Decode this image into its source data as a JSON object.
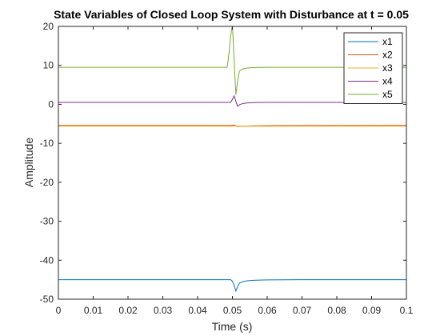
{
  "chart_data": {
    "type": "line",
    "title": "State Variables of Closed Loop System with Disturbance at t = 0.05",
    "xlabel": "Time (s)",
    "ylabel": "Amplitude",
    "xlim": [
      0,
      0.1
    ],
    "ylim": [
      -50,
      20
    ],
    "xticks": [
      "0",
      "0.01",
      "0.02",
      "0.03",
      "0.04",
      "0.05",
      "0.06",
      "0.07",
      "0.08",
      "0.09",
      "0.1"
    ],
    "xtick_values": [
      0,
      0.01,
      0.02,
      0.03,
      0.04,
      0.05,
      0.06,
      0.07,
      0.08,
      0.09,
      0.1
    ],
    "yticks": [
      "-50",
      "-40",
      "-30",
      "-20",
      "-10",
      "0",
      "10",
      "20"
    ],
    "ytick_values": [
      -50,
      -40,
      -30,
      -20,
      -10,
      0,
      10,
      20
    ],
    "grid": false,
    "legend_position": "top-right",
    "series": [
      {
        "name": "x1",
        "color": "#0072BD",
        "x": [
          0,
          0.0495,
          0.05,
          0.0505,
          0.051,
          0.0515,
          0.052,
          0.053,
          0.054,
          0.056,
          0.06,
          0.07,
          0.1
        ],
        "y": [
          -45,
          -45,
          -45.4,
          -46.5,
          -47.9,
          -46.8,
          -45.9,
          -45.5,
          -45.3,
          -45.15,
          -45.05,
          -45,
          -45
        ]
      },
      {
        "name": "x2",
        "color": "#D95319",
        "x": [
          0,
          0.0495,
          0.0505,
          0.0515,
          0.053,
          0.056,
          0.06,
          0.1
        ],
        "y": [
          -5.4,
          -5.4,
          -5.3,
          -5.7,
          -5.6,
          -5.5,
          -5.45,
          -5.4
        ]
      },
      {
        "name": "x3",
        "color": "#EDB120",
        "x": [
          0,
          0.05,
          0.051,
          0.052,
          0.06,
          0.1
        ],
        "y": [
          -5.6,
          -5.6,
          -5.55,
          -5.6,
          -5.6,
          -5.6
        ]
      },
      {
        "name": "x4",
        "color": "#7E2F8E",
        "x": [
          0,
          0.0495,
          0.05,
          0.0505,
          0.051,
          0.0515,
          0.052,
          0.053,
          0.054,
          0.056,
          0.06,
          0.07,
          0.1
        ],
        "y": [
          0.5,
          0.5,
          1.3,
          2.2,
          0.7,
          -0.5,
          -0.1,
          0.2,
          0.35,
          0.45,
          0.5,
          0.5,
          0.5
        ]
      },
      {
        "name": "x5",
        "color": "#77AC30",
        "x": [
          0,
          0.0485,
          0.049,
          0.0495,
          0.05,
          0.0505,
          0.051,
          0.0515,
          0.052,
          0.053,
          0.054,
          0.056,
          0.06,
          0.07,
          0.1
        ],
        "y": [
          9.5,
          9.5,
          13,
          17.5,
          20.5,
          11,
          2.5,
          6,
          8.5,
          9.1,
          9.3,
          9.45,
          9.5,
          9.5,
          9.5
        ]
      }
    ]
  }
}
